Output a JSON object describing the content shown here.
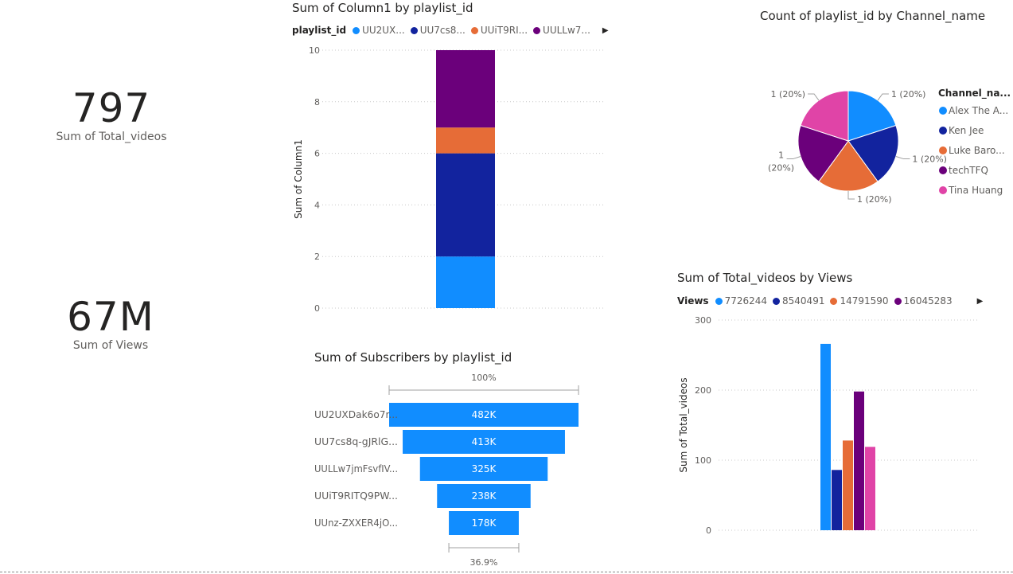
{
  "cards": [
    {
      "value": "797",
      "label": "Sum of Total_videos"
    },
    {
      "value": "67M",
      "label": "Sum of Views"
    }
  ],
  "colors": {
    "blue": "#118DFF",
    "navy": "#12239E",
    "orange": "#E66C37",
    "purple": "#6B007B",
    "pink": "#E044A7"
  },
  "chart_data": [
    {
      "type": "bar",
      "title": "Sum of Column1 by playlist_id",
      "ylabel": "Sum of Column1",
      "xlabel": "",
      "legend_title": "playlist_id",
      "legend": [
        "UU2UX...",
        "UU7cs8...",
        "UUiT9RI...",
        "UULLw7..."
      ],
      "ylim": [
        0,
        10
      ],
      "yticks": [
        "0",
        "2",
        "4",
        "6",
        "8",
        "10"
      ],
      "stacked": true,
      "series": [
        {
          "name": "UU2UX...",
          "color": "#118DFF",
          "value": 2
        },
        {
          "name": "UU7cs8...",
          "color": "#12239E",
          "value": 4
        },
        {
          "name": "UUiT9RI...",
          "color": "#E66C37",
          "value": 1
        },
        {
          "name": "UULLw7...",
          "color": "#6B007B",
          "value": 3
        }
      ]
    },
    {
      "type": "pie",
      "title": "Count of playlist_id by Channel_name",
      "legend_title": "Channel_na...",
      "slices": [
        {
          "name": "Alex The A...",
          "value": 1,
          "label": "1 (20%)",
          "color": "#118DFF"
        },
        {
          "name": "Ken Jee",
          "value": 1,
          "label": "1 (20%)",
          "color": "#12239E"
        },
        {
          "name": "Luke Baro...",
          "value": 1,
          "label": "1 (20%)",
          "color": "#E66C37"
        },
        {
          "name": "techTFQ",
          "value": 1,
          "label_line1": "1",
          "label_line2": "(20%)",
          "color": "#6B007B"
        },
        {
          "name": "Tina Huang",
          "value": 1,
          "label": "1 (20%)",
          "color": "#E044A7"
        }
      ]
    },
    {
      "type": "funnel",
      "title": "Sum of Subscribers by playlist_id",
      "top_pct": "100%",
      "bottom_pct": "36.9%",
      "categories": [
        "UU2UXDak6o7r...",
        "UU7cs8q-gJRlG...",
        "UULLw7jmFsvfIV...",
        "UUiT9RITQ9PW...",
        "UUnz-ZXXER4jO..."
      ],
      "values": [
        482,
        413,
        325,
        238,
        178
      ],
      "value_labels": [
        "482K",
        "413K",
        "325K",
        "238K",
        "178K"
      ],
      "max": 482
    },
    {
      "type": "bar",
      "title": "Sum of Total_videos by Views",
      "ylabel": "Sum of Total_videos",
      "xlabel": "",
      "legend_title": "Views",
      "legend": [
        "7726244",
        "8540491",
        "14791590",
        "16045283"
      ],
      "ylim": [
        0,
        300
      ],
      "yticks": [
        "0",
        "100",
        "200",
        "300"
      ],
      "series": [
        {
          "name": "7726244",
          "color": "#118DFF",
          "value": 266
        },
        {
          "name": "8540491",
          "color": "#12239E",
          "value": 86
        },
        {
          "name": "14791590",
          "color": "#E66C37",
          "value": 128
        },
        {
          "name": "16045283",
          "color": "#6B007B",
          "value": 198
        },
        {
          "name": "",
          "color": "#E044A7",
          "value": 119
        }
      ]
    }
  ]
}
